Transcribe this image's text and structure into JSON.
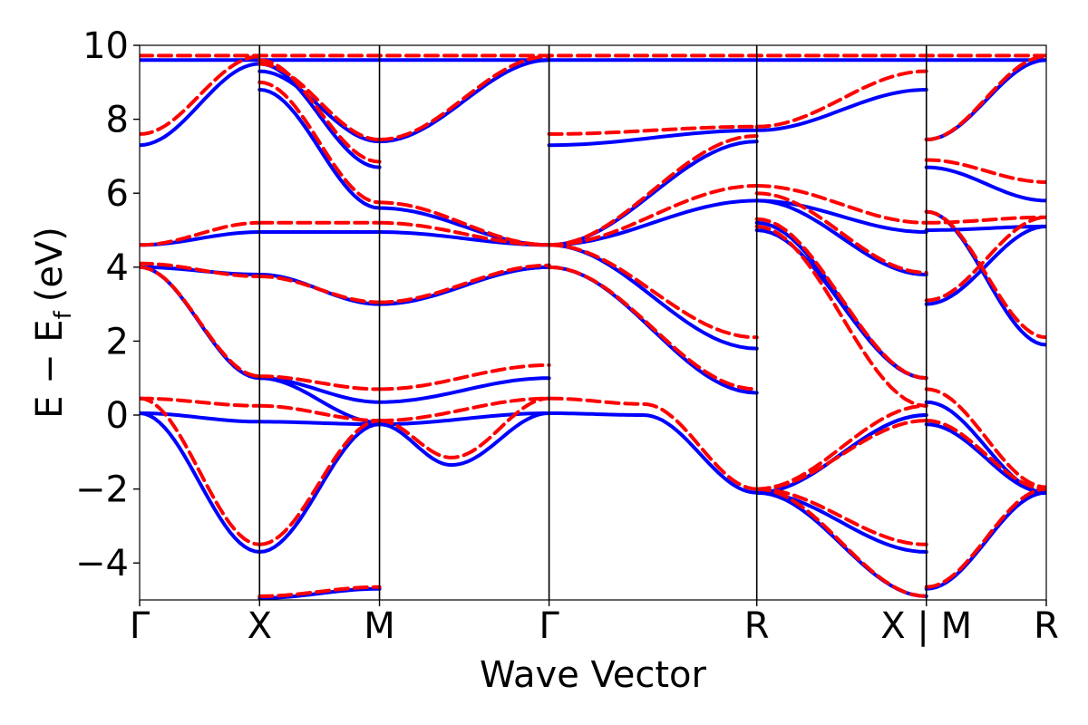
{
  "chart_data": {
    "type": "line",
    "xlabel": "Wave Vector",
    "ylabel_main": "E − E",
    "ylabel_sub": "f",
    "ylabel_unit": "(eV)",
    "ylim": [
      -5,
      10
    ],
    "yticks": [
      -4,
      -2,
      0,
      2,
      4,
      6,
      8,
      10
    ],
    "ytick_labels": [
      "−4",
      "−2",
      "0",
      "2",
      "4",
      "6",
      "8",
      "10"
    ],
    "grid": false,
    "kpath": [
      {
        "label": "Γ",
        "x": 0
      },
      {
        "label": "X",
        "x": 1
      },
      {
        "label": "M",
        "x": 2
      },
      {
        "label": "Γ",
        "x": 3.414
      },
      {
        "label": "R",
        "x": 5.146
      },
      {
        "label": "X | M",
        "x": 6.56
      },
      {
        "label": "R",
        "x": 7.56
      }
    ],
    "xlim": [
      0,
      7.56
    ],
    "series_styles": [
      {
        "color": "#0000ff",
        "dash": "solid"
      },
      {
        "color": "#ff0000",
        "dash": "dashed"
      }
    ],
    "series": [
      {
        "values": [
          {
            "x": [
              0,
              1
            ],
            "y": [
              0.05,
              -0.18
            ]
          },
          {
            "x": [
              1,
              2
            ],
            "y": [
              -0.18,
              -0.25
            ]
          },
          {
            "x": [
              2,
              3.414
            ],
            "y": [
              -0.25,
              0.05
            ]
          },
          {
            "x": [
              0,
              1
            ],
            "y": [
              0.05,
              -3.7
            ]
          },
          {
            "x": [
              1,
              2
            ],
            "y": [
              -3.7,
              -0.25
            ]
          },
          {
            "x": [
              2,
              2.6,
              3.414
            ],
            "y": [
              -0.25,
              -1.35,
              0.05
            ]
          },
          {
            "x": [
              3.414,
              4.2,
              5.146
            ],
            "y": [
              0.05,
              0.0,
              -2.1
            ]
          },
          {
            "x": [
              5.146,
              6.56
            ],
            "y": [
              -2.1,
              -3.7
            ]
          },
          {
            "x": [
              5.146,
              6.56
            ],
            "y": [
              -2.1,
              -0.0
            ]
          },
          {
            "x": [
              5.146,
              6.56
            ],
            "y": [
              -2.1,
              -0.0
            ]
          },
          {
            "x": [
              1,
              2
            ],
            "y": [
              -4.95,
              -4.7
            ]
          },
          {
            "x": [
              5.146,
              6.56
            ],
            "y": [
              -2.1,
              -4.9
            ]
          },
          {
            "x": [
              0,
              1
            ],
            "y": [
              4.0,
              1.0
            ]
          },
          {
            "x": [
              1,
              2
            ],
            "y": [
              1.0,
              0.35
            ]
          },
          {
            "x": [
              1,
              2
            ],
            "y": [
              1.0,
              -0.2
            ]
          },
          {
            "x": [
              2,
              3.414
            ],
            "y": [
              0.35,
              1.0
            ]
          },
          {
            "x": [
              0,
              1
            ],
            "y": [
              4.0,
              3.8
            ]
          },
          {
            "x": [
              1,
              2
            ],
            "y": [
              3.8,
              3.0
            ]
          },
          {
            "x": [
              2,
              3.414
            ],
            "y": [
              3.0,
              4.0
            ]
          },
          {
            "x": [
              2,
              3.414
            ],
            "y": [
              3.0,
              4.0
            ]
          },
          {
            "x": [
              0,
              1
            ],
            "y": [
              4.6,
              4.95
            ]
          },
          {
            "x": [
              1,
              2
            ],
            "y": [
              4.95,
              4.95
            ]
          },
          {
            "x": [
              2,
              3.414
            ],
            "y": [
              4.95,
              4.6
            ]
          },
          {
            "x": [
              3.414,
              5.146
            ],
            "y": [
              4.6,
              1.8
            ]
          },
          {
            "x": [
              3.414,
              5.146
            ],
            "y": [
              4.0,
              0.6
            ]
          },
          {
            "x": [
              3.414,
              5.146
            ],
            "y": [
              4.6,
              5.8
            ]
          },
          {
            "x": [
              3.414,
              5.146
            ],
            "y": [
              4.6,
              7.4
            ]
          },
          {
            "x": [
              5.146,
              6.56
            ],
            "y": [
              5.8,
              4.95
            ]
          },
          {
            "x": [
              5.146,
              6.56
            ],
            "y": [
              5.2,
              1.0
            ]
          },
          {
            "x": [
              5.146,
              6.56
            ],
            "y": [
              5.0,
              1.0
            ]
          },
          {
            "x": [
              5.146,
              6.56
            ],
            "y": [
              5.8,
              3.8
            ]
          },
          {
            "x": [
              6.56,
              7.56
            ],
            "y": [
              6.7,
              5.8
            ]
          },
          {
            "x": [
              6.56,
              7.56
            ],
            "y": [
              5.0,
              5.1
            ]
          },
          {
            "x": [
              6.56,
              7.56
            ],
            "y": [
              3.0,
              5.1
            ]
          },
          {
            "x": [
              6.56,
              7.56
            ],
            "y": [
              0.35,
              -2.1
            ]
          },
          {
            "x": [
              6.56,
              7.56
            ],
            "y": [
              -0.25,
              -2.1
            ]
          },
          {
            "x": [
              6.56,
              7.56
            ],
            "y": [
              -4.7,
              -2.1
            ]
          },
          {
            "x": [
              6.56,
              7.56
            ],
            "y": [
              5.5,
              1.9
            ]
          },
          {
            "x": [
              6.56,
              7.56
            ],
            "y": [
              7.45,
              9.6
            ]
          },
          {
            "x": [
              0,
              7.56
            ],
            "y": [
              9.6,
              9.6
            ]
          },
          {
            "x": [
              0,
              1
            ],
            "y": [
              7.3,
              9.5
            ]
          },
          {
            "x": [
              1,
              2
            ],
            "y": [
              8.8,
              5.6
            ]
          },
          {
            "x": [
              2,
              3.414
            ],
            "y": [
              5.6,
              4.6
            ]
          },
          {
            "x": [
              3.414,
              5.146
            ],
            "y": [
              7.3,
              7.7
            ]
          },
          {
            "x": [
              5.146,
              6.56
            ],
            "y": [
              7.7,
              8.8
            ]
          },
          {
            "x": [
              1,
              2
            ],
            "y": [
              9.3,
              7.4
            ]
          },
          {
            "x": [
              2,
              3.414
            ],
            "y": [
              7.4,
              9.6
            ]
          },
          {
            "x": [
              1,
              2
            ],
            "y": [
              9.5,
              6.7
            ]
          }
        ]
      },
      {
        "values": [
          {
            "x": [
              0,
              1
            ],
            "y": [
              0.45,
              0.25
            ]
          },
          {
            "x": [
              1,
              2
            ],
            "y": [
              0.25,
              -0.15
            ]
          },
          {
            "x": [
              2,
              3.414
            ],
            "y": [
              -0.15,
              0.45
            ]
          },
          {
            "x": [
              0,
              1
            ],
            "y": [
              0.45,
              -3.5
            ]
          },
          {
            "x": [
              1,
              2
            ],
            "y": [
              -3.5,
              -0.15
            ]
          },
          {
            "x": [
              2,
              2.6,
              3.414
            ],
            "y": [
              -0.15,
              -1.15,
              0.45
            ]
          },
          {
            "x": [
              3.414,
              4.2,
              5.146
            ],
            "y": [
              0.45,
              0.3,
              -2.0
            ]
          },
          {
            "x": [
              5.146,
              6.56
            ],
            "y": [
              -2.0,
              -3.5
            ]
          },
          {
            "x": [
              5.146,
              6.56
            ],
            "y": [
              -2.0,
              0.25
            ]
          },
          {
            "x": [
              5.146,
              6.56
            ],
            "y": [
              -2.0,
              -0.15
            ]
          },
          {
            "x": [
              1,
              2
            ],
            "y": [
              -4.9,
              -4.65
            ]
          },
          {
            "x": [
              5.146,
              6.56
            ],
            "y": [
              -2.0,
              -4.9
            ]
          },
          {
            "x": [
              0,
              1
            ],
            "y": [
              4.0,
              1.05
            ]
          },
          {
            "x": [
              1,
              2
            ],
            "y": [
              1.05,
              0.7
            ]
          },
          {
            "x": [
              2,
              3.414
            ],
            "y": [
              0.7,
              1.35
            ]
          },
          {
            "x": [
              0,
              1
            ],
            "y": [
              4.1,
              3.75
            ]
          },
          {
            "x": [
              1,
              2
            ],
            "y": [
              3.75,
              3.05
            ]
          },
          {
            "x": [
              2,
              3.414
            ],
            "y": [
              3.05,
              4.05
            ]
          },
          {
            "x": [
              0,
              1
            ],
            "y": [
              4.6,
              5.2
            ]
          },
          {
            "x": [
              1,
              2
            ],
            "y": [
              5.2,
              5.2
            ]
          },
          {
            "x": [
              2,
              3.414
            ],
            "y": [
              5.2,
              4.6
            ]
          },
          {
            "x": [
              3.414,
              5.146
            ],
            "y": [
              4.6,
              2.1
            ]
          },
          {
            "x": [
              3.414,
              5.146
            ],
            "y": [
              4.0,
              0.7
            ]
          },
          {
            "x": [
              3.414,
              5.146
            ],
            "y": [
              4.6,
              6.2
            ]
          },
          {
            "x": [
              3.414,
              5.146
            ],
            "y": [
              4.6,
              7.55
            ]
          },
          {
            "x": [
              5.146,
              6.56
            ],
            "y": [
              6.2,
              5.2
            ]
          },
          {
            "x": [
              5.146,
              6.56
            ],
            "y": [
              5.3,
              1.0
            ]
          },
          {
            "x": [
              5.146,
              6.56
            ],
            "y": [
              5.1,
              0.25
            ]
          },
          {
            "x": [
              5.146,
              6.56
            ],
            "y": [
              6.0,
              3.85
            ]
          },
          {
            "x": [
              6.56,
              7.56
            ],
            "y": [
              6.9,
              6.3
            ]
          },
          {
            "x": [
              6.56,
              7.56
            ],
            "y": [
              5.2,
              5.35
            ]
          },
          {
            "x": [
              6.56,
              7.56
            ],
            "y": [
              3.1,
              5.35
            ]
          },
          {
            "x": [
              6.56,
              7.56
            ],
            "y": [
              0.7,
              -1.95
            ]
          },
          {
            "x": [
              6.56,
              7.56
            ],
            "y": [
              -0.15,
              -2.0
            ]
          },
          {
            "x": [
              6.56,
              7.56
            ],
            "y": [
              -4.65,
              -2.0
            ]
          },
          {
            "x": [
              6.56,
              7.56
            ],
            "y": [
              5.5,
              2.1
            ]
          },
          {
            "x": [
              6.56,
              7.56
            ],
            "y": [
              7.45,
              9.7
            ]
          },
          {
            "x": [
              0,
              7.56
            ],
            "y": [
              9.72,
              9.72
            ]
          },
          {
            "x": [
              0,
              1
            ],
            "y": [
              7.6,
              9.7
            ]
          },
          {
            "x": [
              1,
              2
            ],
            "y": [
              9.0,
              5.75
            ]
          },
          {
            "x": [
              2,
              3.414
            ],
            "y": [
              5.75,
              4.6
            ]
          },
          {
            "x": [
              3.414,
              5.146
            ],
            "y": [
              7.6,
              7.8
            ]
          },
          {
            "x": [
              5.146,
              6.56
            ],
            "y": [
              7.8,
              9.3
            ]
          },
          {
            "x": [
              1,
              2
            ],
            "y": [
              9.5,
              7.45
            ]
          },
          {
            "x": [
              2,
              3.414
            ],
            "y": [
              7.45,
              9.7
            ]
          },
          {
            "x": [
              1,
              2
            ],
            "y": [
              9.6,
              6.85
            ]
          }
        ]
      }
    ]
  }
}
